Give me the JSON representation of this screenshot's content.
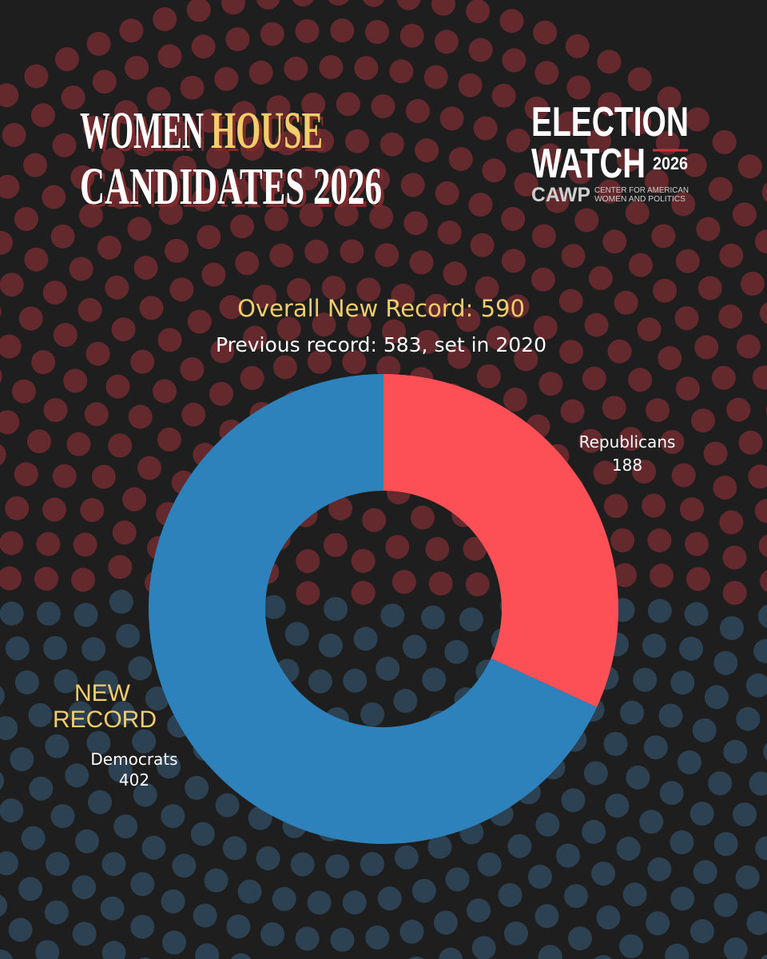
{
  "chart_data": {
    "type": "donut",
    "title_lines": [
      [
        "WOMEN",
        "HOUSE"
      ],
      [
        "CANDIDATES 2026"
      ]
    ],
    "logo": {
      "line1": "ELECTION",
      "line2": "WATCH",
      "year": "2026",
      "org": "CAWP",
      "org_name_lines": [
        "CENTER FOR AMERICAN",
        "WOMEN AND POLITICS"
      ]
    },
    "subtitle": "Overall New Record: 590",
    "subtitle2": "Previous record: 583, set in 2020",
    "categories": [
      "Republicans",
      "Democrats"
    ],
    "values": [
      188,
      402
    ],
    "colors": [
      "#fc4f56",
      "#2e82bb"
    ],
    "annotation_lines": [
      "NEW",
      "RECORD"
    ]
  }
}
